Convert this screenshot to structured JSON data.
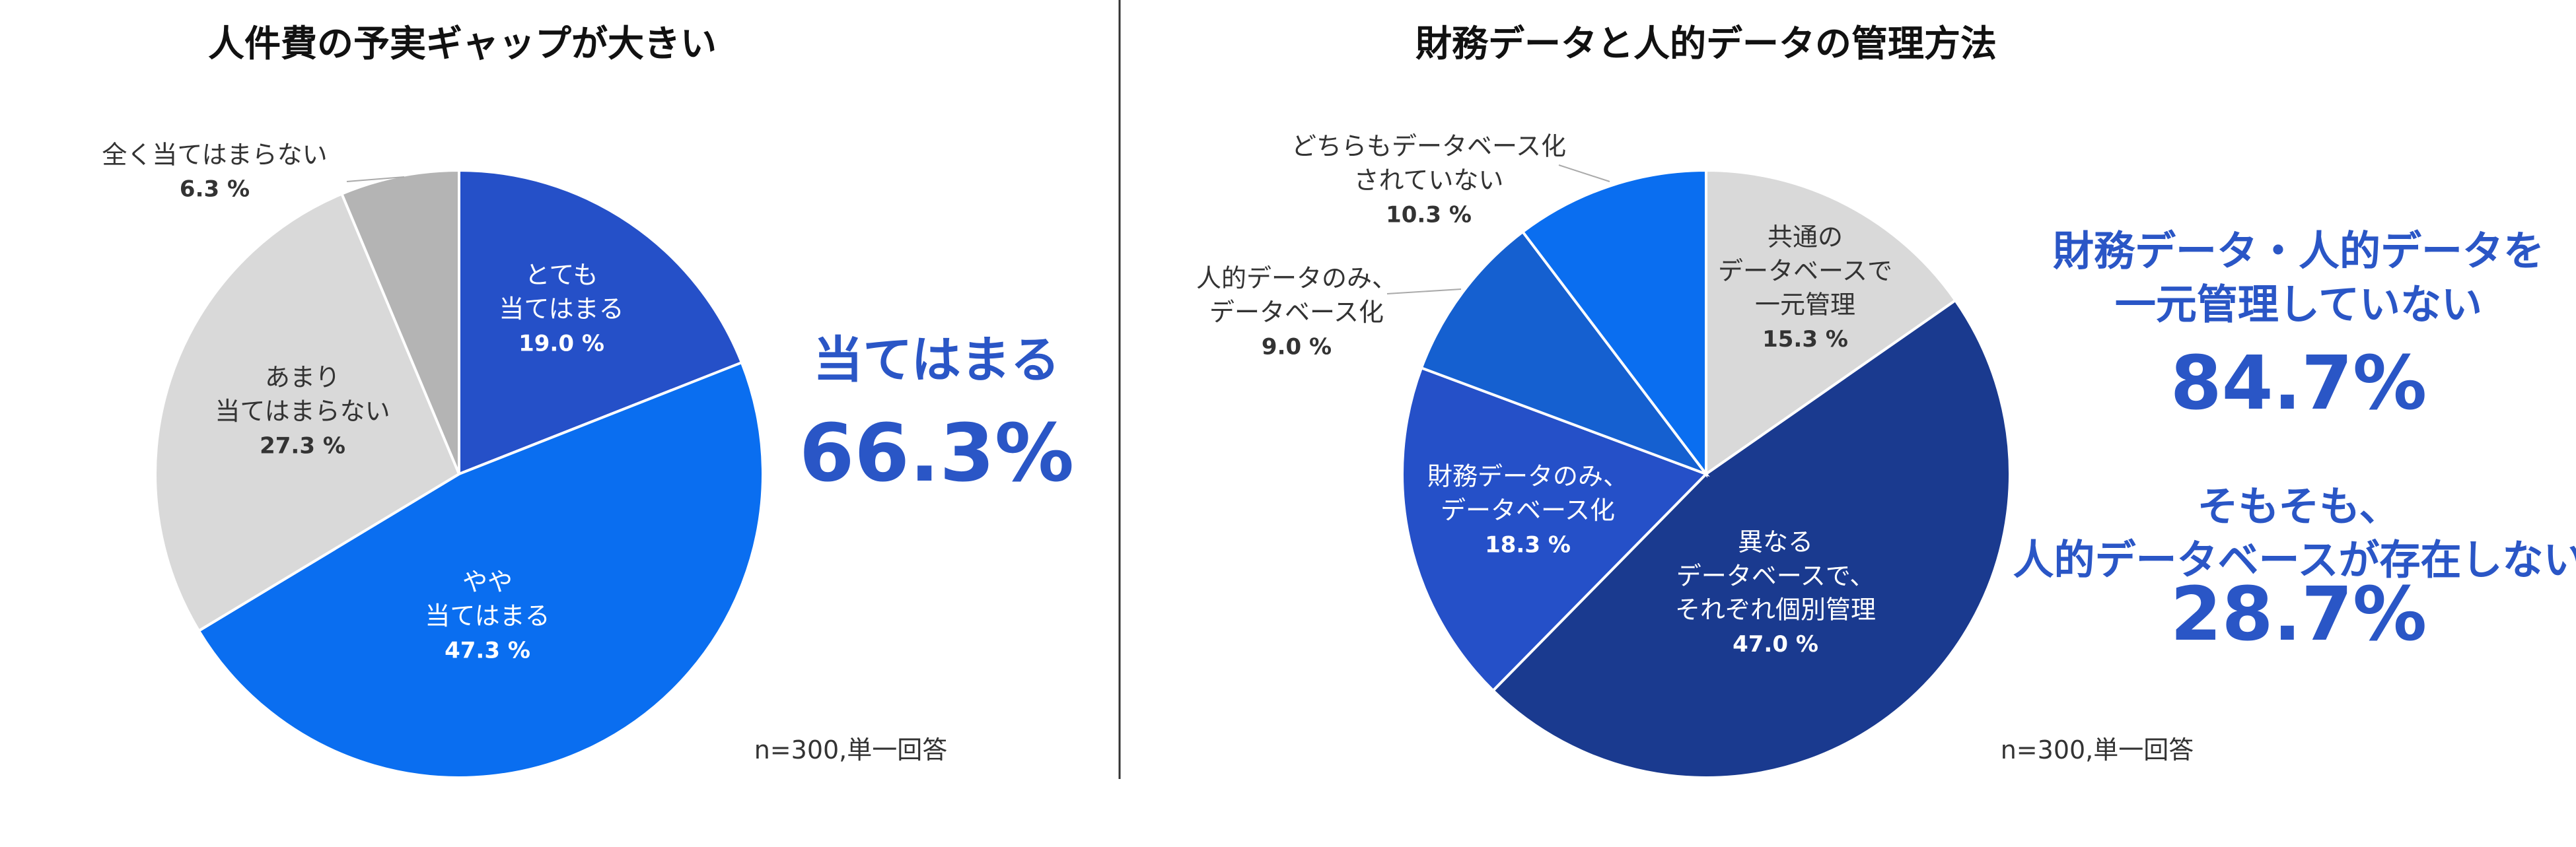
{
  "chart_data": [
    {
      "type": "pie",
      "title": "人件費の予実ギャップが大きい",
      "categories": [
        "とても\n当てはまる",
        "やや\n当てはまる",
        "あまり\n当てはまらない",
        "全く当てはまらない"
      ],
      "values": [
        19.0,
        47.3,
        27.3,
        6.3
      ],
      "value_labels": [
        "19.0 %",
        "47.3 %",
        "27.3 %",
        "6.3 %"
      ],
      "colors": [
        "#2550c8",
        "#0a6ef0",
        "#d9d9d9",
        "#b4b4b4"
      ],
      "annotations": [
        "当てはまる",
        "66.3%"
      ],
      "note": "n=300,単一回答"
    },
    {
      "type": "pie",
      "title": "財務データと人的データの管理方法",
      "categories": [
        "共通の\nデータベースで\n一元管理",
        "異なる\nデータベースで、\nそれぞれ個別管理",
        "財務データのみ、\nデータベース化",
        "人的データのみ、\nデータベース化",
        "どちらもデータベース化\nされていない"
      ],
      "values": [
        15.3,
        47.0,
        18.3,
        9.0,
        10.3
      ],
      "value_labels": [
        "15.3 %",
        "47.0 %",
        "18.3 %",
        "9.0 %",
        "10.3 %"
      ],
      "colors": [
        "#d9d9d9",
        "#1a3a8f",
        "#2550c8",
        "#1560d0",
        "#0a6ef0"
      ],
      "annotations": [
        "財務データ・人的データを\n一元管理していない",
        "84.7%",
        "そもそも、\n人的データベースが存在しない",
        "28.7%"
      ],
      "note": "n=300,単一回答"
    }
  ]
}
